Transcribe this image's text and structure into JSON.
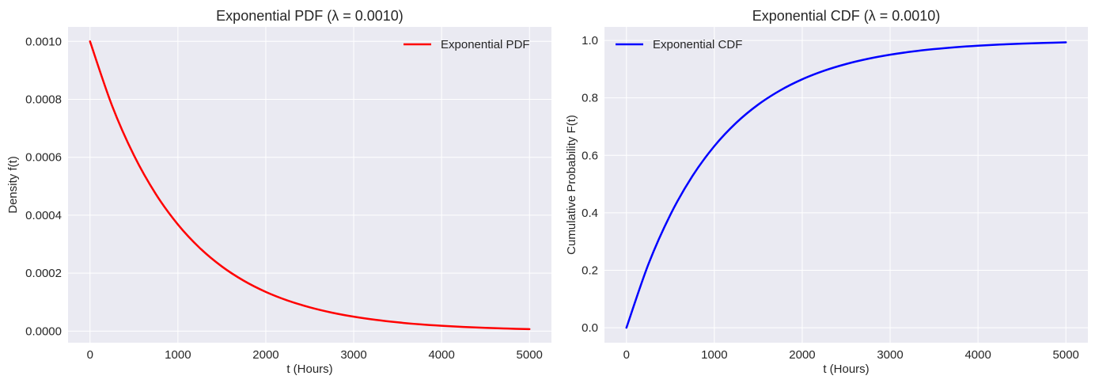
{
  "chart_data": [
    {
      "type": "line",
      "title": "Exponential PDF (λ = 0.0010)",
      "xlabel": "t (Hours)",
      "ylabel": "Density f(t)",
      "xlim": [
        -250,
        5250
      ],
      "ylim": [
        -4e-05,
        0.00105
      ],
      "xticks": [
        0,
        1000,
        2000,
        3000,
        4000,
        5000
      ],
      "yticks": [
        0.0,
        0.0002,
        0.0004,
        0.0006,
        0.0008,
        0.001
      ],
      "ytick_labels": [
        "0.0000",
        "0.0002",
        "0.0004",
        "0.0006",
        "0.0008",
        "0.0010"
      ],
      "grid": true,
      "legend": "top-right",
      "series": [
        {
          "name": "Exponential PDF",
          "color": "#ff0000",
          "x": [
            0,
            250,
            500,
            750,
            1000,
            1250,
            1500,
            1750,
            2000,
            2250,
            2500,
            2750,
            3000,
            3250,
            3500,
            3750,
            4000,
            4250,
            4500,
            4750,
            5000
          ],
          "y": [
            0.001,
            0.0007788,
            0.0006065,
            0.0004724,
            0.0003679,
            0.0002865,
            0.0002231,
            0.0001738,
            0.0001353,
            0.0001054,
            8.21e-05,
            6.39e-05,
            4.98e-05,
            3.88e-05,
            3.02e-05,
            2.35e-05,
            1.83e-05,
            1.43e-05,
            1.11e-05,
            8.7e-06,
            6.7e-06
          ]
        }
      ]
    },
    {
      "type": "line",
      "title": "Exponential CDF (λ = 0.0010)",
      "xlabel": "t (Hours)",
      "ylabel": "Cumulative Probability F(t)",
      "xlim": [
        -250,
        5250
      ],
      "ylim": [
        -0.052,
        1.047
      ],
      "xticks": [
        0,
        1000,
        2000,
        3000,
        4000,
        5000
      ],
      "yticks": [
        0.0,
        0.2,
        0.4,
        0.6,
        0.8,
        1.0
      ],
      "ytick_labels": [
        "0.0",
        "0.2",
        "0.4",
        "0.6",
        "0.8",
        "1.0"
      ],
      "grid": true,
      "legend": "top-left",
      "series": [
        {
          "name": "Exponential CDF",
          "color": "#0000ff",
          "x": [
            0,
            250,
            500,
            750,
            1000,
            1250,
            1500,
            1750,
            2000,
            2250,
            2500,
            2750,
            3000,
            3250,
            3500,
            3750,
            4000,
            4250,
            4500,
            4750,
            5000
          ],
          "y": [
            0,
            0.2212,
            0.3935,
            0.5276,
            0.6321,
            0.7135,
            0.7769,
            0.8262,
            0.8647,
            0.8946,
            0.9179,
            0.9361,
            0.9502,
            0.9612,
            0.9698,
            0.9765,
            0.9817,
            0.9857,
            0.9889,
            0.9913,
            0.9933
          ]
        }
      ]
    }
  ]
}
